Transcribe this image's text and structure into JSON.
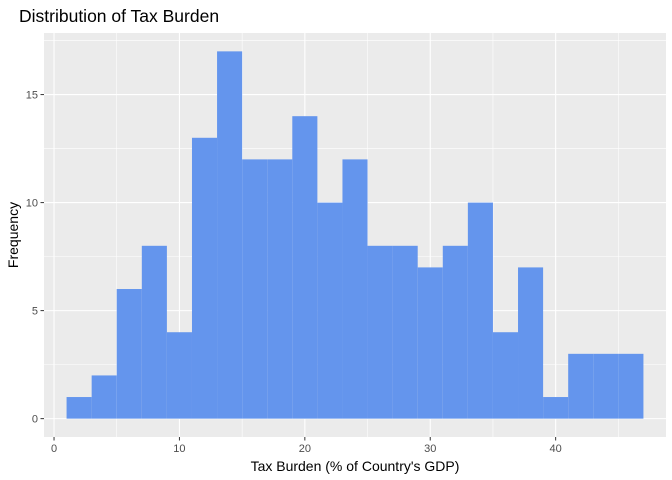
{
  "chart_data": {
    "type": "bar",
    "subtype": "histogram",
    "title": "Distribution of Tax Burden",
    "xlabel": "Tax Burden (% of Country's GDP)",
    "ylabel": "Frequency",
    "bin_width": 2,
    "bins": [
      {
        "x0": 1,
        "x1": 3,
        "count": 1
      },
      {
        "x0": 3,
        "x1": 5,
        "count": 2
      },
      {
        "x0": 5,
        "x1": 7,
        "count": 6
      },
      {
        "x0": 7,
        "x1": 9,
        "count": 8
      },
      {
        "x0": 9,
        "x1": 11,
        "count": 4
      },
      {
        "x0": 11,
        "x1": 13,
        "count": 13
      },
      {
        "x0": 13,
        "x1": 15,
        "count": 17
      },
      {
        "x0": 15,
        "x1": 17,
        "count": 12
      },
      {
        "x0": 17,
        "x1": 19,
        "count": 12
      },
      {
        "x0": 19,
        "x1": 21,
        "count": 14
      },
      {
        "x0": 21,
        "x1": 23,
        "count": 10
      },
      {
        "x0": 23,
        "x1": 25,
        "count": 12
      },
      {
        "x0": 25,
        "x1": 27,
        "count": 8
      },
      {
        "x0": 27,
        "x1": 29,
        "count": 8
      },
      {
        "x0": 29,
        "x1": 31,
        "count": 7
      },
      {
        "x0": 31,
        "x1": 33,
        "count": 8
      },
      {
        "x0": 33,
        "x1": 35,
        "count": 10
      },
      {
        "x0": 35,
        "x1": 37,
        "count": 4
      },
      {
        "x0": 37,
        "x1": 39,
        "count": 7
      },
      {
        "x0": 39,
        "x1": 41,
        "count": 1
      },
      {
        "x0": 41,
        "x1": 43,
        "count": 3
      },
      {
        "x0": 43,
        "x1": 45,
        "count": 3
      },
      {
        "x0": 45,
        "x1": 47,
        "count": 3
      }
    ],
    "xlim": [
      -0.8,
      48.8
    ],
    "ylim": [
      -0.85,
      17.85
    ],
    "xticks": [
      0,
      10,
      20,
      30,
      40
    ],
    "yticks": [
      0,
      5,
      10,
      15
    ],
    "grid": true,
    "legend": "none",
    "colors": {
      "bar": "#6495ED",
      "panel_background": "#EBEBEB",
      "grid_major": "#FFFFFF",
      "tick_text": "#4D4D4D"
    }
  }
}
